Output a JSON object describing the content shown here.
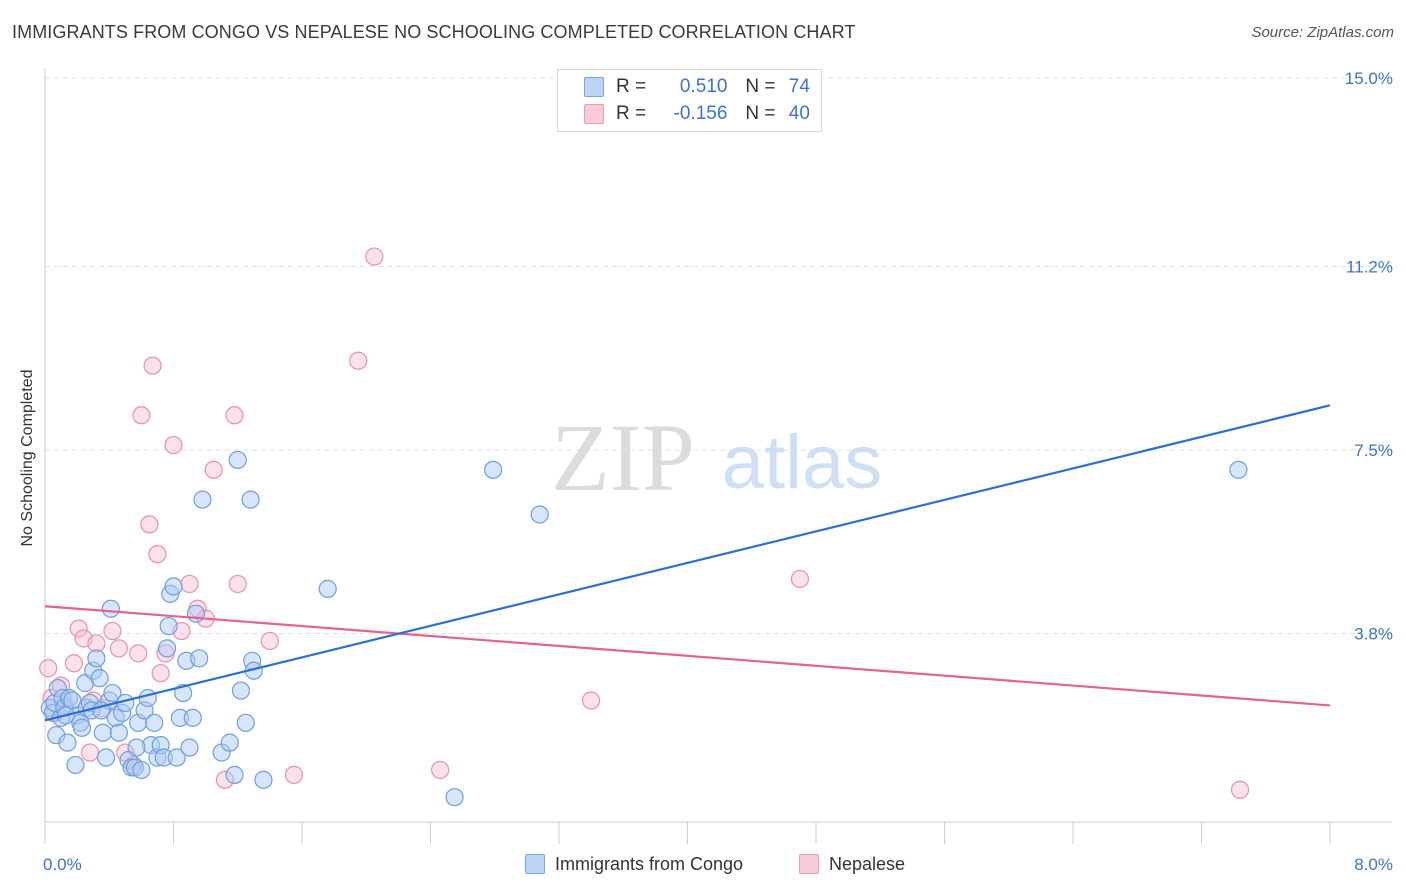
{
  "title": "IMMIGRANTS FROM CONGO VS NEPALESE NO SCHOOLING COMPLETED CORRELATION CHART",
  "source": "Source: ZipAtlas.com",
  "watermark": {
    "zip": "ZIP",
    "atlas": "atlas"
  },
  "legend": {
    "rows": [
      {
        "r_label": "R =",
        "r_value": "0.510",
        "n_label": "N =",
        "n_value": "74"
      },
      {
        "r_label": "R =",
        "r_value": "-0.156",
        "n_label": "N =",
        "n_value": "40"
      }
    ]
  },
  "bottom_legend": {
    "congo": "Immigrants from Congo",
    "nepalese": "Nepalese"
  },
  "chart_data": {
    "type": "scatter",
    "ylabel": "No Schooling Completed",
    "xlabel": "",
    "xlim": [
      0,
      8.0
    ],
    "ylim": [
      0,
      15.0
    ],
    "x_tick_labels": [
      "0.0%",
      "8.0%"
    ],
    "y_tick_labels": [
      "15.0%",
      "11.2%",
      "7.5%",
      "3.8%"
    ],
    "y_tick_values": [
      15.0,
      11.2,
      7.5,
      3.8
    ],
    "grid": true,
    "legend_placement": "top-center",
    "colors": {
      "congo_fill": "#aecbf3",
      "congo_edge": "#6f9fe0",
      "congo_line": "#2a6fd6",
      "nepalese_fill": "#f7bfd0",
      "nepalese_edge": "#ec8fab",
      "nepalese_line": "#e5628d",
      "tick_label": "#3b74c9"
    },
    "series": [
      {
        "name": "Immigrants from Congo",
        "trend": {
          "x": [
            0.0,
            8.0
          ],
          "y": [
            2.05,
            8.4
          ]
        },
        "points": [
          [
            0.03,
            2.3
          ],
          [
            0.05,
            2.2
          ],
          [
            0.06,
            2.4
          ],
          [
            0.07,
            1.75
          ],
          [
            0.08,
            2.7
          ],
          [
            0.1,
            2.1
          ],
          [
            0.11,
            2.5
          ],
          [
            0.12,
            2.3
          ],
          [
            0.14,
            1.6
          ],
          [
            0.15,
            2.5
          ],
          [
            0.17,
            2.45
          ],
          [
            0.19,
            1.15
          ],
          [
            0.2,
            2.15
          ],
          [
            0.22,
            2.0
          ],
          [
            0.23,
            1.9
          ],
          [
            0.25,
            2.8
          ],
          [
            0.26,
            2.3
          ],
          [
            0.28,
            2.4
          ],
          [
            0.3,
            3.05
          ],
          [
            0.32,
            3.3
          ],
          [
            0.34,
            2.9
          ],
          [
            0.36,
            1.8
          ],
          [
            0.38,
            1.3
          ],
          [
            0.4,
            2.45
          ],
          [
            0.42,
            2.6
          ],
          [
            0.44,
            2.1
          ],
          [
            0.46,
            1.8
          ],
          [
            0.48,
            2.2
          ],
          [
            0.5,
            2.4
          ],
          [
            0.52,
            1.25
          ],
          [
            0.54,
            1.1
          ],
          [
            0.56,
            1.1
          ],
          [
            0.58,
            2.0
          ],
          [
            0.6,
            1.05
          ],
          [
            0.62,
            2.25
          ],
          [
            0.64,
            2.5
          ],
          [
            0.66,
            1.55
          ],
          [
            0.68,
            2.0
          ],
          [
            0.7,
            1.3
          ],
          [
            0.72,
            1.55
          ],
          [
            0.74,
            1.3
          ],
          [
            0.76,
            3.5
          ],
          [
            0.77,
            3.95
          ],
          [
            0.78,
            4.6
          ],
          [
            0.8,
            4.75
          ],
          [
            0.82,
            1.3
          ],
          [
            0.84,
            2.1
          ],
          [
            0.86,
            2.6
          ],
          [
            0.88,
            3.25
          ],
          [
            0.9,
            1.5
          ],
          [
            0.92,
            2.1
          ],
          [
            0.94,
            4.2
          ],
          [
            0.96,
            3.3
          ],
          [
            0.98,
            6.5
          ],
          [
            1.1,
            1.4
          ],
          [
            1.15,
            1.6
          ],
          [
            1.18,
            0.95
          ],
          [
            1.2,
            7.3
          ],
          [
            1.22,
            2.65
          ],
          [
            1.25,
            2.0
          ],
          [
            1.28,
            6.5
          ],
          [
            1.29,
            3.25
          ],
          [
            1.3,
            3.05
          ],
          [
            1.36,
            0.85
          ],
          [
            1.76,
            4.7
          ],
          [
            2.55,
            0.5
          ],
          [
            2.79,
            7.1
          ],
          [
            3.08,
            6.2
          ],
          [
            0.29,
            2.25
          ],
          [
            0.41,
            4.3
          ],
          [
            0.13,
            2.15
          ],
          [
            7.43,
            7.1
          ],
          [
            0.57,
            1.5
          ],
          [
            0.35,
            2.25
          ]
        ]
      },
      {
        "name": "Nepalese",
        "trend": {
          "x": [
            0.0,
            8.0
          ],
          "y": [
            4.35,
            2.35
          ]
        },
        "points": [
          [
            0.02,
            3.1
          ],
          [
            0.04,
            2.5
          ],
          [
            0.06,
            2.2
          ],
          [
            0.1,
            2.75
          ],
          [
            0.12,
            2.35
          ],
          [
            0.18,
            3.2
          ],
          [
            0.21,
            3.9
          ],
          [
            0.24,
            3.7
          ],
          [
            0.28,
            1.4
          ],
          [
            0.3,
            2.45
          ],
          [
            0.32,
            3.6
          ],
          [
            0.36,
            2.3
          ],
          [
            0.42,
            3.85
          ],
          [
            0.46,
            3.5
          ],
          [
            0.5,
            1.4
          ],
          [
            0.55,
            1.15
          ],
          [
            0.58,
            3.4
          ],
          [
            0.6,
            8.2
          ],
          [
            0.65,
            6.0
          ],
          [
            0.67,
            9.2
          ],
          [
            0.7,
            5.4
          ],
          [
            0.72,
            3.0
          ],
          [
            0.75,
            3.4
          ],
          [
            0.8,
            7.6
          ],
          [
            0.85,
            3.85
          ],
          [
            0.9,
            4.8
          ],
          [
            0.95,
            4.3
          ],
          [
            1.0,
            4.1
          ],
          [
            1.05,
            7.1
          ],
          [
            1.12,
            0.85
          ],
          [
            1.18,
            8.2
          ],
          [
            1.2,
            4.8
          ],
          [
            1.4,
            3.65
          ],
          [
            1.55,
            0.95
          ],
          [
            1.95,
            9.3
          ],
          [
            2.05,
            11.4
          ],
          [
            2.46,
            1.05
          ],
          [
            3.4,
            2.45
          ],
          [
            4.7,
            4.9
          ],
          [
            7.44,
            0.65
          ]
        ]
      }
    ]
  }
}
